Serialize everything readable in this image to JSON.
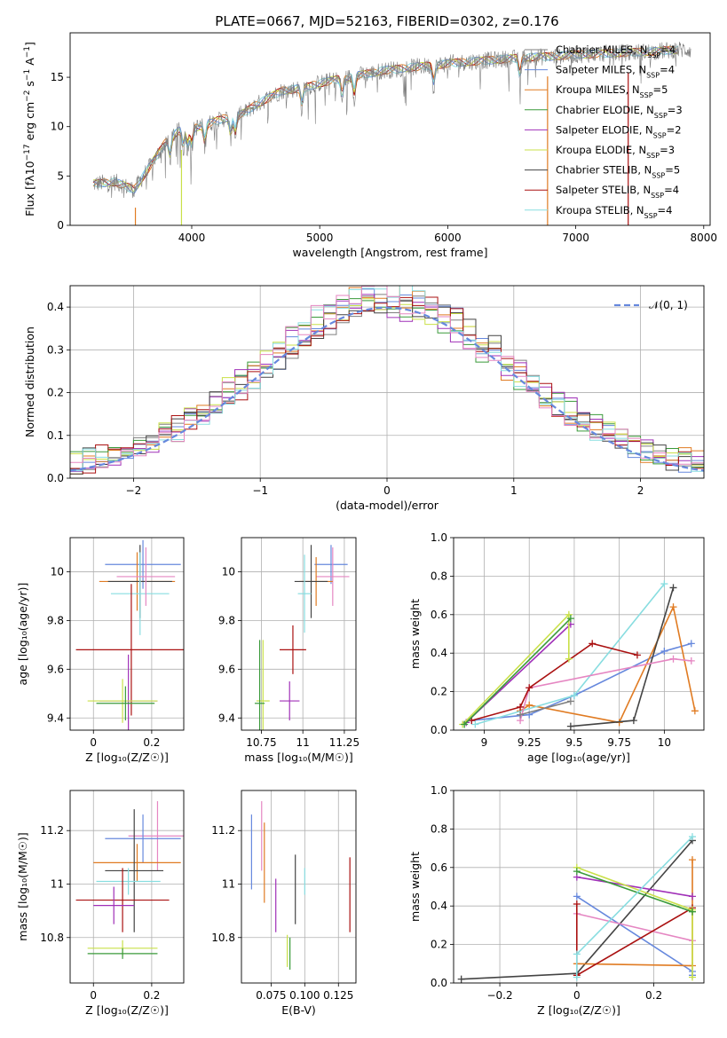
{
  "title": "PLATE=0667, MJD=52163, FIBERID=0302, z=0.176",
  "colors": {
    "chabrier_miles": "#7f7f7f",
    "salpeter_miles": "#6688dd",
    "kroupa_miles": "#e07b22",
    "chabrier_elodie": "#3a9a3a",
    "salpeter_elodie": "#a030b8",
    "kroupa_elodie": "#c9e048",
    "chabrier_stelib": "#444444",
    "salpeter_stelib": "#aa1111",
    "kroupa_stelib": "#88dde0",
    "pink": "#e586c2",
    "gaussian": "#6688dd"
  },
  "legend": [
    {
      "name": "Chabrier MILES",
      "n": "4",
      "color": "#7f7f7f"
    },
    {
      "name": "Salpeter MILES",
      "n": "4",
      "color": "#6688dd"
    },
    {
      "name": "Kroupa MILES",
      "n": "5",
      "color": "#e07b22"
    },
    {
      "name": "Chabrier ELODIE",
      "n": "3",
      "color": "#3a9a3a"
    },
    {
      "name": "Salpeter ELODIE",
      "n": "2",
      "color": "#a030b8"
    },
    {
      "name": "Kroupa ELODIE",
      "n": "3",
      "color": "#c9e048"
    },
    {
      "name": "Chabrier STELIB",
      "n": "5",
      "color": "#444444"
    },
    {
      "name": "Salpeter STELIB",
      "n": "4",
      "color": "#aa1111"
    },
    {
      "name": "Kroupa STELIB",
      "n": "4",
      "color": "#88dde0"
    }
  ],
  "legend_prefix": "N",
  "legend_sub": "SSP",
  "chart_data": [
    {
      "id": "spectrum",
      "type": "line",
      "xlabel": "wavelength [Angstrom, rest frame]",
      "ylabel_parts": [
        "Flux [f",
        "λ",
        "10",
        "−17",
        " erg cm",
        "−2",
        " s",
        "−1",
        " A",
        "−1",
        "]"
      ],
      "xlim": [
        3050,
        8050
      ],
      "ylim": [
        0,
        19.5
      ],
      "xticks": [
        4000,
        5000,
        6000,
        7000,
        8000
      ],
      "yticks": [
        0,
        5,
        10,
        15
      ],
      "continuum": [
        [
          3230,
          4.2
        ],
        [
          3400,
          4.4
        ],
        [
          3550,
          3.6
        ],
        [
          3700,
          6.5
        ],
        [
          3800,
          8.5
        ],
        [
          3900,
          9.6
        ],
        [
          4000,
          9.8
        ],
        [
          4100,
          10.2
        ],
        [
          4200,
          10.6
        ],
        [
          4300,
          11.0
        ],
        [
          4400,
          11.3
        ],
        [
          4500,
          12.2
        ],
        [
          4600,
          12.9
        ],
        [
          4700,
          13.6
        ],
        [
          4800,
          13.8
        ],
        [
          4900,
          14.0
        ],
        [
          5000,
          14.4
        ],
        [
          5100,
          14.7
        ],
        [
          5200,
          14.9
        ],
        [
          5300,
          15.2
        ],
        [
          5400,
          15.4
        ],
        [
          5500,
          15.7
        ],
        [
          5600,
          15.8
        ],
        [
          5700,
          16.0
        ],
        [
          5800,
          16.1
        ],
        [
          5900,
          16.2
        ],
        [
          6000,
          16.4
        ],
        [
          6200,
          16.6
        ],
        [
          6400,
          16.8
        ],
        [
          6600,
          17.0
        ],
        [
          6800,
          17.1
        ],
        [
          7000,
          17.3
        ],
        [
          7200,
          17.4
        ],
        [
          7400,
          17.5
        ],
        [
          7600,
          17.6
        ],
        [
          7800,
          17.8
        ]
      ]
    },
    {
      "id": "residuals",
      "type": "histogram",
      "xlabel": "(data-model)/error",
      "ylabel": "Normed distribution",
      "xlim": [
        -2.5,
        2.5
      ],
      "ylim": [
        0,
        0.45
      ],
      "xticks": [
        -2,
        -1,
        0,
        1,
        2
      ],
      "yticks": [
        0.0,
        0.1,
        0.2,
        0.3,
        0.4
      ],
      "bin_width": 0.1,
      "gaussian_label": "𝒩(0, 1)"
    },
    {
      "id": "z-age",
      "type": "scatter",
      "xlabel": "Z [log₁₀(Z/Z☉)]",
      "ylabel": "age  [log₁₀(age/yr)]",
      "xlim": [
        -0.08,
        0.31
      ],
      "ylim": [
        9.35,
        10.14
      ],
      "xticks": [
        0.0,
        0.2
      ],
      "yticks": [
        9.4,
        9.6,
        9.8,
        10.0
      ],
      "points": [
        {
          "c": "salpeter_miles",
          "x": 0.17,
          "xe": 0.13,
          "y": 10.03,
          "ye": 0.1
        },
        {
          "c": "kroupa_miles",
          "x": 0.15,
          "xe": 0.13,
          "y": 9.96,
          "ye": 0.12
        },
        {
          "c": "chabrier_stelib",
          "x": 0.16,
          "xe": 0.11,
          "y": 9.96,
          "ye": 0.15
        },
        {
          "c": "kroupa_stelib",
          "x": 0.16,
          "xe": 0.1,
          "y": 9.91,
          "ye": 0.17
        },
        {
          "c": "pink",
          "x": 0.18,
          "xe": 0.1,
          "y": 9.98,
          "ye": 0.12
        },
        {
          "c": "salpeter_stelib",
          "x": 0.13,
          "xe": 0.19,
          "y": 9.68,
          "ye": 0.27
        },
        {
          "c": "salpeter_elodie",
          "x": 0.12,
          "xe": 0.1,
          "y": 9.47,
          "ye": 0.19
        },
        {
          "c": "kroupa_elodie",
          "x": 0.1,
          "xe": 0.12,
          "y": 9.47,
          "ye": 0.09
        },
        {
          "c": "chabrier_elodie",
          "x": 0.11,
          "xe": 0.1,
          "y": 9.46,
          "ye": 0.07
        }
      ]
    },
    {
      "id": "mass-age",
      "type": "scatter",
      "xlabel": "mass [log₁₀(M/M☉)]",
      "ylabel": "",
      "xlim": [
        10.63,
        11.32
      ],
      "ylim": [
        9.35,
        10.14
      ],
      "xticks": [
        10.75,
        11.0,
        11.25
      ],
      "yticks": [
        9.4,
        9.6,
        9.8,
        10.0
      ],
      "points": [
        {
          "c": "salpeter_miles",
          "x": 11.17,
          "xe": 0.1,
          "y": 10.03,
          "ye": 0.08
        },
        {
          "c": "pink",
          "x": 11.18,
          "xe": 0.1,
          "y": 9.98,
          "ye": 0.12
        },
        {
          "c": "kroupa_miles",
          "x": 11.08,
          "xe": 0.1,
          "y": 9.96,
          "ye": 0.1
        },
        {
          "c": "chabrier_stelib",
          "x": 11.05,
          "xe": 0.1,
          "y": 9.96,
          "ye": 0.15
        },
        {
          "c": "kroupa_stelib",
          "x": 11.01,
          "xe": 0.04,
          "y": 9.91,
          "ye": 0.16
        },
        {
          "c": "salpeter_stelib",
          "x": 10.94,
          "xe": 0.08,
          "y": 9.68,
          "ye": 0.1
        },
        {
          "c": "salpeter_elodie",
          "x": 10.92,
          "xe": 0.06,
          "y": 9.47,
          "ye": 0.08
        },
        {
          "c": "kroupa_elodie",
          "x": 10.76,
          "xe": 0.04,
          "y": 9.47,
          "ye": 0.25
        },
        {
          "c": "chabrier_elodie",
          "x": 10.74,
          "xe": 0.03,
          "y": 9.46,
          "ye": 0.26
        }
      ]
    },
    {
      "id": "age-weight",
      "type": "line",
      "xlabel": "age  [log₁₀(age/yr)]",
      "ylabel": "mass weight",
      "xlim": [
        8.83,
        10.22
      ],
      "ylim": [
        0,
        1.0
      ],
      "xticks": [
        9.0,
        9.25,
        9.5,
        9.75,
        10.0
      ],
      "yticks": [
        0.0,
        0.2,
        0.4,
        0.6,
        0.8,
        1.0
      ],
      "series": [
        {
          "c": "salpeter_miles",
          "pts": [
            [
              8.93,
              0.05
            ],
            [
              9.25,
              0.08
            ],
            [
              9.5,
              0.18
            ],
            [
              10.0,
              0.41
            ],
            [
              10.15,
              0.45
            ]
          ]
        },
        {
          "c": "kroupa_miles",
          "pts": [
            [
              9.2,
              0.1
            ],
            [
              9.25,
              0.13
            ],
            [
              9.75,
              0.04
            ],
            [
              10.05,
              0.64
            ],
            [
              10.17,
              0.1
            ]
          ]
        },
        {
          "c": "chabrier_stelib",
          "pts": [
            [
              9.48,
              0.02
            ],
            [
              9.83,
              0.05
            ],
            [
              10.05,
              0.74
            ]
          ]
        },
        {
          "c": "kroupa_stelib",
          "pts": [
            [
              8.95,
              0.03
            ],
            [
              9.5,
              0.18
            ],
            [
              10.0,
              0.76
            ]
          ]
        },
        {
          "c": "pink",
          "pts": [
            [
              9.2,
              0.05
            ],
            [
              9.25,
              0.22
            ],
            [
              10.05,
              0.37
            ],
            [
              10.15,
              0.36
            ]
          ]
        },
        {
          "c": "salpeter_stelib",
          "pts": [
            [
              8.93,
              0.05
            ],
            [
              9.2,
              0.12
            ],
            [
              9.25,
              0.22
            ],
            [
              9.6,
              0.45
            ],
            [
              9.85,
              0.39
            ]
          ]
        },
        {
          "c": "salpeter_elodie",
          "pts": [
            [
              8.9,
              0.04
            ],
            [
              9.48,
              0.55
            ]
          ]
        },
        {
          "c": "kroupa_elodie",
          "pts": [
            [
              8.88,
              0.03
            ],
            [
              9.47,
              0.6
            ],
            [
              9.47,
              0.37
            ]
          ]
        },
        {
          "c": "chabrier_elodie",
          "pts": [
            [
              8.89,
              0.03
            ],
            [
              9.48,
              0.58
            ]
          ]
        },
        {
          "c": "chabrier_miles",
          "pts": [
            [
              9.2,
              0.08
            ],
            [
              9.48,
              0.15
            ]
          ]
        }
      ]
    },
    {
      "id": "z-mass",
      "type": "scatter",
      "xlabel": "Z [log₁₀(Z/Z☉)]",
      "ylabel": "mass [log₁₀(M/M☉)]",
      "xlim": [
        -0.08,
        0.31
      ],
      "ylim": [
        10.63,
        11.35
      ],
      "xticks": [
        0.0,
        0.2
      ],
      "yticks": [
        10.8,
        11.0,
        11.2
      ],
      "points": [
        {
          "c": "pink",
          "x": 0.22,
          "xe": 0.1,
          "y": 11.18,
          "ye": 0.13
        },
        {
          "c": "salpeter_miles",
          "x": 0.17,
          "xe": 0.13,
          "y": 11.17,
          "ye": 0.09
        },
        {
          "c": "kroupa_miles",
          "x": 0.15,
          "xe": 0.15,
          "y": 11.08,
          "ye": 0.07
        },
        {
          "c": "chabrier_stelib",
          "x": 0.14,
          "xe": 0.1,
          "y": 11.05,
          "ye": 0.23
        },
        {
          "c": "kroupa_stelib",
          "x": 0.12,
          "xe": 0.11,
          "y": 11.01,
          "ye": 0.05
        },
        {
          "c": "salpeter_stelib",
          "x": 0.1,
          "xe": 0.16,
          "y": 10.94,
          "ye": 0.12
        },
        {
          "c": "salpeter_elodie",
          "x": 0.07,
          "xe": 0.07,
          "y": 10.92,
          "ye": 0.07
        },
        {
          "c": "kroupa_elodie",
          "x": 0.1,
          "xe": 0.12,
          "y": 10.76,
          "ye": 0.03
        },
        {
          "c": "chabrier_elodie",
          "x": 0.1,
          "xe": 0.12,
          "y": 10.74,
          "ye": 0.02
        }
      ]
    },
    {
      "id": "ebv-mass",
      "type": "scatter",
      "xlabel": "E(B-V)",
      "ylabel": "",
      "xlim": [
        0.053,
        0.138
      ],
      "ylim": [
        10.63,
        11.35
      ],
      "xticks": [
        0.075,
        0.1,
        0.125
      ],
      "xticklabels": [
        "0.075",
        "0.100",
        "0.125"
      ],
      "yticks": [
        10.8,
        11.0,
        11.2
      ],
      "points": [
        {
          "c": "salpeter_miles",
          "x": 0.0605,
          "xe": 0,
          "y": 11.12,
          "ye": 0.14
        },
        {
          "c": "kroupa_miles",
          "x": 0.07,
          "xe": 0,
          "y": 11.08,
          "ye": 0.15
        },
        {
          "c": "pink",
          "x": 0.068,
          "xe": 0,
          "y": 11.18,
          "ye": 0.13
        },
        {
          "c": "salpeter_elodie",
          "x": 0.0785,
          "xe": 0,
          "y": 10.92,
          "ye": 0.1
        },
        {
          "c": "kroupa_elodie",
          "x": 0.087,
          "xe": 0,
          "y": 10.75,
          "ye": 0.06
        },
        {
          "c": "chabrier_elodie",
          "x": 0.089,
          "xe": 0,
          "y": 10.74,
          "ye": 0.06
        },
        {
          "c": "chabrier_stelib",
          "x": 0.093,
          "xe": 0,
          "y": 10.98,
          "ye": 0.13
        },
        {
          "c": "kroupa_stelib",
          "x": 0.1,
          "xe": 0,
          "y": 11.01,
          "ye": 0.05
        },
        {
          "c": "salpeter_stelib",
          "x": 0.1335,
          "xe": 0,
          "y": 10.96,
          "ye": 0.14
        }
      ]
    },
    {
      "id": "z-weight",
      "type": "line",
      "xlabel": "Z [log₁₀(Z/Z☉)]",
      "ylabel": "mass weight",
      "xlim": [
        -0.32,
        0.33
      ],
      "ylim": [
        0,
        1.0
      ],
      "xticks": [
        -0.2,
        0.0,
        0.2
      ],
      "yticks": [
        0.0,
        0.2,
        0.4,
        0.6,
        0.8,
        1.0
      ],
      "series": [
        {
          "c": "chabrier_stelib",
          "pts": [
            [
              -0.3,
              0.02
            ],
            [
              0.0,
              0.05
            ],
            [
              0.3,
              0.74
            ]
          ]
        },
        {
          "c": "salpeter_miles",
          "pts": [
            [
              0.0,
              0.45
            ],
            [
              0.3,
              0.06
            ],
            [
              0.3,
              0.04
            ]
          ]
        },
        {
          "c": "kroupa_miles",
          "pts": [
            [
              0.0,
              0.1
            ],
            [
              0.3,
              0.09
            ],
            [
              0.3,
              0.64
            ]
          ]
        },
        {
          "c": "pink",
          "pts": [
            [
              0.0,
              0.36
            ],
            [
              0.3,
              0.22
            ]
          ]
        },
        {
          "c": "salpeter_stelib",
          "pts": [
            [
              0.0,
              0.41
            ],
            [
              0.0,
              0.04
            ],
            [
              0.3,
              0.39
            ]
          ]
        },
        {
          "c": "salpeter_elodie",
          "pts": [
            [
              0.0,
              0.55
            ],
            [
              0.3,
              0.45
            ]
          ]
        },
        {
          "c": "kroupa_elodie",
          "pts": [
            [
              0.0,
              0.6
            ],
            [
              0.3,
              0.38
            ],
            [
              0.3,
              0.03
            ]
          ]
        },
        {
          "c": "chabrier_elodie",
          "pts": [
            [
              0.0,
              0.58
            ],
            [
              0.3,
              0.37
            ]
          ]
        },
        {
          "c": "kroupa_stelib",
          "pts": [
            [
              0.0,
              0.03
            ],
            [
              0.0,
              0.15
            ],
            [
              0.3,
              0.76
            ]
          ]
        }
      ]
    }
  ]
}
